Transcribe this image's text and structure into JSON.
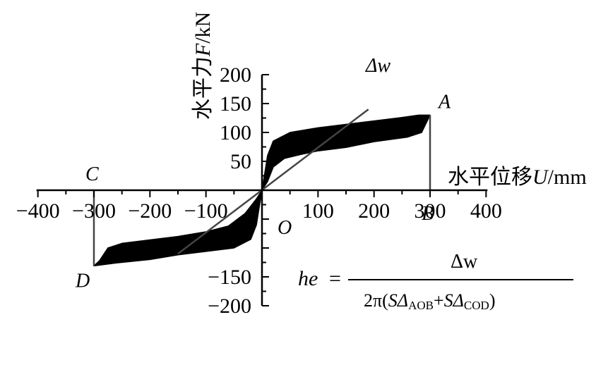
{
  "chart_data": {
    "type": "line",
    "x_axis": {
      "label_prefix": "水平位移",
      "label_var": "U",
      "label_unit": "/mm",
      "range": [
        -400,
        400
      ],
      "ticks": [
        -400,
        -300,
        -200,
        -100,
        100,
        200,
        300,
        400
      ]
    },
    "y_axis": {
      "label_prefix": "水平力",
      "label_var": "F",
      "label_unit": "/kN",
      "range": [
        -200,
        200
      ],
      "ticks": [
        200,
        150,
        100,
        50,
        -150,
        -200
      ]
    },
    "series": [
      {
        "kind": "hysteresis-loop-filled",
        "color": "#000000",
        "points": [
          [
            300,
            130
          ],
          [
            280,
            130
          ],
          [
            250,
            126
          ],
          [
            200,
            120
          ],
          [
            150,
            114
          ],
          [
            100,
            108
          ],
          [
            50,
            100
          ],
          [
            20,
            85
          ],
          [
            10,
            60
          ],
          [
            5,
            30
          ],
          [
            0,
            0
          ],
          [
            -5,
            -30
          ],
          [
            -10,
            -60
          ],
          [
            -20,
            -85
          ],
          [
            -50,
            -100
          ],
          [
            -100,
            -106
          ],
          [
            -150,
            -112
          ],
          [
            -200,
            -120
          ],
          [
            -260,
            -126
          ],
          [
            -300,
            -131
          ],
          [
            -290,
            -122
          ],
          [
            -275,
            -100
          ],
          [
            -250,
            -92
          ],
          [
            -200,
            -86
          ],
          [
            -150,
            -80
          ],
          [
            -100,
            -72
          ],
          [
            -60,
            -62
          ],
          [
            -30,
            -40
          ],
          [
            -10,
            -15
          ],
          [
            0,
            0
          ],
          [
            10,
            15
          ],
          [
            20,
            40
          ],
          [
            40,
            55
          ],
          [
            70,
            62
          ],
          [
            100,
            68
          ],
          [
            150,
            74
          ],
          [
            200,
            84
          ],
          [
            260,
            92
          ],
          [
            285,
            100
          ],
          [
            300,
            130
          ]
        ]
      },
      {
        "kind": "line",
        "name": "Δw",
        "color": "#444444",
        "points": [
          [
            -150,
            -110
          ],
          [
            190,
            140
          ]
        ]
      },
      {
        "kind": "line",
        "color": "#444444",
        "points": [
          [
            300,
            0
          ],
          [
            300,
            130
          ]
        ]
      },
      {
        "kind": "line",
        "color": "#444444",
        "points": [
          [
            -300,
            0
          ],
          [
            -300,
            -131
          ]
        ]
      }
    ],
    "point_labels": [
      {
        "text": "A",
        "x": 300,
        "y": 130
      },
      {
        "text": "B",
        "x": 300,
        "y": 0
      },
      {
        "text": "C",
        "x": -300,
        "y": 0
      },
      {
        "text": "D",
        "x": -300,
        "y": -131
      },
      {
        "text": "O",
        "x": 0,
        "y": 0
      }
    ],
    "annotation": "Δw",
    "formula": {
      "lhs": "he",
      "eq": "=",
      "numerator": "Δw",
      "denominator_prefix": "2π(",
      "term1_s": "S",
      "term1_tri": "Δ",
      "term1_sub": "AOB",
      "plus": "+",
      "term2_s": "S",
      "term2_tri": "Δ",
      "term2_sub": "COD",
      "denominator_suffix": ")"
    }
  }
}
